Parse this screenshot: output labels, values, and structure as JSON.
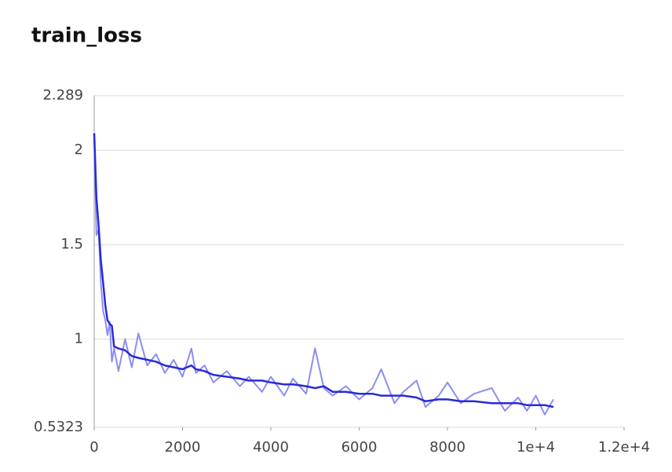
{
  "chart_data": {
    "type": "line",
    "title": "train_loss",
    "x": [
      0,
      50,
      100,
      150,
      200,
      250,
      300,
      350,
      400,
      450,
      550,
      700,
      850,
      1000,
      1200,
      1400,
      1600,
      1800,
      2000,
      2200,
      2300,
      2500,
      2700,
      3000,
      3300,
      3500,
      3800,
      4000,
      4300,
      4500,
      4800,
      5000,
      5200,
      5400,
      5700,
      6000,
      6300,
      6500,
      6800,
      7000,
      7300,
      7500,
      7800,
      8000,
      8300,
      8600,
      9000,
      9300,
      9600,
      9800,
      10000,
      10200,
      10400
    ],
    "series": [
      {
        "color": "#8c8ef0",
        "values": [
          2.09,
          1.55,
          1.58,
          1.3,
          1.15,
          1.1,
          1.02,
          1.09,
          0.88,
          0.95,
          0.83,
          1.0,
          0.85,
          1.03,
          0.86,
          0.92,
          0.82,
          0.89,
          0.8,
          0.95,
          0.82,
          0.86,
          0.77,
          0.83,
          0.75,
          0.8,
          0.72,
          0.8,
          0.7,
          0.79,
          0.71,
          0.95,
          0.74,
          0.7,
          0.75,
          0.68,
          0.74,
          0.84,
          0.66,
          0.72,
          0.78,
          0.64,
          0.7,
          0.77,
          0.66,
          0.71,
          0.74,
          0.62,
          0.69,
          0.62,
          0.7,
          0.6,
          0.68
        ]
      },
      {
        "color": "#2a2ad8",
        "values": [
          2.09,
          1.75,
          1.6,
          1.42,
          1.3,
          1.18,
          1.1,
          1.08,
          1.07,
          0.96,
          0.95,
          0.94,
          0.91,
          0.9,
          0.89,
          0.88,
          0.86,
          0.85,
          0.84,
          0.86,
          0.84,
          0.83,
          0.81,
          0.8,
          0.79,
          0.78,
          0.78,
          0.77,
          0.76,
          0.76,
          0.75,
          0.74,
          0.75,
          0.72,
          0.72,
          0.71,
          0.71,
          0.7,
          0.7,
          0.7,
          0.69,
          0.67,
          0.68,
          0.68,
          0.67,
          0.67,
          0.66,
          0.66,
          0.66,
          0.65,
          0.65,
          0.65,
          0.64
        ]
      }
    ],
    "xlim": [
      0,
      12000
    ],
    "xticks": [
      0,
      2000,
      4000,
      6000,
      8000,
      {
        "value": 10000,
        "label": "1e+4"
      },
      {
        "value": 12000,
        "label": "1.2e+4"
      }
    ],
    "ylim": [
      0.5323,
      2.289
    ],
    "yticks": [
      0.5323,
      1,
      1.5,
      2,
      2.289
    ],
    "grid": true
  }
}
